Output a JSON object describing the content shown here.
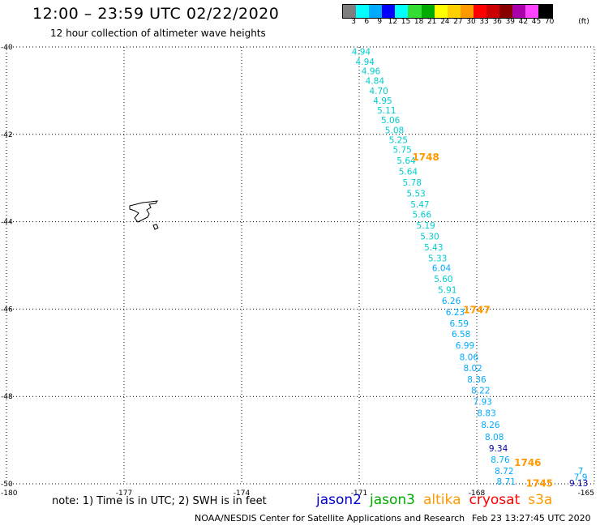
{
  "header": {
    "title": "12:00 – 23:59 UTC 02/22/2020",
    "subtitle": "12 hour collection of altimeter wave heights"
  },
  "colorbar": {
    "colors": [
      "#7f7f7f",
      "#00ffff",
      "#00aaff",
      "#0000ff",
      "#00ffff",
      "#33dd33",
      "#00aa00",
      "#ffff00",
      "#ffd000",
      "#ff9900",
      "#ff0000",
      "#cc0000",
      "#880000",
      "#aa00aa",
      "#ff44ff",
      "#000000"
    ],
    "labels": [
      "3",
      "6",
      "9",
      "12",
      "15",
      "18",
      "21",
      "24",
      "27",
      "30",
      "33",
      "36",
      "39",
      "42",
      "45",
      "70"
    ],
    "unit": "(ft)"
  },
  "map": {
    "lon_min": -180,
    "lon_max": -165,
    "lat_min": -50,
    "lat_max": -40,
    "x_ticks": [
      "-180",
      "-177",
      "-174",
      "-171",
      "-168",
      "-165"
    ],
    "y_ticks": [
      "-40",
      "-42",
      "-44",
      "-46",
      "-48",
      "-50"
    ],
    "track_colors": {
      "jason2": "#0000cc",
      "jason3": "#00aa00",
      "altika": "#ff9900",
      "cryosat": "#ff0000",
      "s3a": "#ff9900",
      "cyan": "#00cccc",
      "blue": "#00aaff",
      "navy": "#0000aa"
    },
    "track_points": [
      {
        "lon": -170.95,
        "lat": -40.1,
        "v": "4.94",
        "c": "cyan"
      },
      {
        "lon": -170.85,
        "lat": -40.33,
        "v": "4.94",
        "c": "cyan"
      },
      {
        "lon": -170.7,
        "lat": -40.55,
        "v": "4.96",
        "c": "cyan"
      },
      {
        "lon": -170.6,
        "lat": -40.77,
        "v": "4.84",
        "c": "cyan"
      },
      {
        "lon": -170.5,
        "lat": -41.0,
        "v": "4.70",
        "c": "cyan"
      },
      {
        "lon": -170.4,
        "lat": -41.22,
        "v": "4.95",
        "c": "cyan"
      },
      {
        "lon": -170.3,
        "lat": -41.45,
        "v": "5.11",
        "c": "cyan"
      },
      {
        "lon": -170.2,
        "lat": -41.67,
        "v": "5.06",
        "c": "cyan"
      },
      {
        "lon": -170.1,
        "lat": -41.9,
        "v": "5.08",
        "c": "cyan"
      },
      {
        "lon": -170.0,
        "lat": -42.12,
        "v": "5.25",
        "c": "cyan"
      },
      {
        "lon": -169.9,
        "lat": -42.35,
        "v": "5.75",
        "c": "cyan"
      },
      {
        "lon": -169.8,
        "lat": -42.6,
        "v": "5.64",
        "c": "cyan"
      },
      {
        "lon": -169.75,
        "lat": -42.85,
        "v": "5.64",
        "c": "cyan"
      },
      {
        "lon": -169.65,
        "lat": -43.1,
        "v": "5.78",
        "c": "cyan"
      },
      {
        "lon": -169.55,
        "lat": -43.35,
        "v": "5.53",
        "c": "cyan"
      },
      {
        "lon": -169.45,
        "lat": -43.6,
        "v": "5.47",
        "c": "cyan"
      },
      {
        "lon": -169.4,
        "lat": -43.83,
        "v": "5.66",
        "c": "cyan"
      },
      {
        "lon": -169.3,
        "lat": -44.08,
        "v": "5.19",
        "c": "cyan"
      },
      {
        "lon": -169.2,
        "lat": -44.33,
        "v": "5.30",
        "c": "cyan"
      },
      {
        "lon": -169.1,
        "lat": -44.58,
        "v": "5.43",
        "c": "cyan"
      },
      {
        "lon": -169.0,
        "lat": -44.83,
        "v": "5.33",
        "c": "cyan"
      },
      {
        "lon": -168.9,
        "lat": -45.06,
        "v": "6.04",
        "c": "blue"
      },
      {
        "lon": -168.85,
        "lat": -45.31,
        "v": "5.60",
        "c": "cyan"
      },
      {
        "lon": -168.75,
        "lat": -45.56,
        "v": "5.91",
        "c": "cyan"
      },
      {
        "lon": -168.65,
        "lat": -45.81,
        "v": "6.26",
        "c": "blue"
      },
      {
        "lon": -168.55,
        "lat": -46.07,
        "v": "6.23",
        "c": "blue"
      },
      {
        "lon": -168.45,
        "lat": -46.33,
        "v": "6.59",
        "c": "blue"
      },
      {
        "lon": -168.4,
        "lat": -46.57,
        "v": "6.58",
        "c": "blue"
      },
      {
        "lon": -168.3,
        "lat": -46.83,
        "v": "6.99",
        "c": "blue"
      },
      {
        "lon": -168.2,
        "lat": -47.1,
        "v": "8.06",
        "c": "blue"
      },
      {
        "lon": -168.1,
        "lat": -47.35,
        "v": "8.02",
        "c": "blue"
      },
      {
        "lon": -168.0,
        "lat": -47.61,
        "v": "8.36",
        "c": "blue"
      },
      {
        "lon": -167.9,
        "lat": -47.86,
        "v": "8.22",
        "c": "blue"
      },
      {
        "lon": -167.85,
        "lat": -48.12,
        "v": "7.93",
        "c": "blue"
      },
      {
        "lon": -167.75,
        "lat": -48.38,
        "v": "8.83",
        "c": "blue"
      },
      {
        "lon": -167.65,
        "lat": -48.65,
        "v": "8.26",
        "c": "blue"
      },
      {
        "lon": -167.55,
        "lat": -48.92,
        "v": "8.08",
        "c": "blue"
      },
      {
        "lon": -167.45,
        "lat": -49.18,
        "v": "9.34",
        "c": "navy"
      },
      {
        "lon": -167.4,
        "lat": -49.44,
        "v": "8.76",
        "c": "blue"
      },
      {
        "lon": -167.3,
        "lat": -49.7,
        "v": "8.72",
        "c": "blue"
      },
      {
        "lon": -167.25,
        "lat": -49.94,
        "v": "8.71",
        "c": "blue"
      },
      {
        "lon": -165.35,
        "lat": -49.7,
        "v": "7",
        "c": "blue"
      },
      {
        "lon": -165.35,
        "lat": -49.84,
        "v": "7.9",
        "c": "blue"
      },
      {
        "lon": -165.4,
        "lat": -49.98,
        "v": "9.13",
        "c": "navy"
      }
    ],
    "time_labels": [
      {
        "lon": -169.3,
        "lat": -42.5,
        "t": "1748"
      },
      {
        "lon": -168.0,
        "lat": -46.0,
        "t": "1747"
      },
      {
        "lon": -166.7,
        "lat": -49.5,
        "t": "1746"
      },
      {
        "lon": -166.4,
        "lat": -49.97,
        "t": "1745"
      }
    ]
  },
  "footer": {
    "note": "note: 1) Time is in UTC; 2) SWH is in feet",
    "satellites": [
      {
        "name": "jason2",
        "color": "#0000cc"
      },
      {
        "name": "jason3",
        "color": "#00aa00"
      },
      {
        "name": "altika",
        "color": "#ff9900"
      },
      {
        "name": "cryosat",
        "color": "#ff0000"
      },
      {
        "name": "s3a",
        "color": "#ff9900"
      }
    ],
    "credits": "NOAA/NESDIS Center for Satellite Applications and Research",
    "timestamp": "Feb 23 13:27:45 UTC 2020"
  }
}
